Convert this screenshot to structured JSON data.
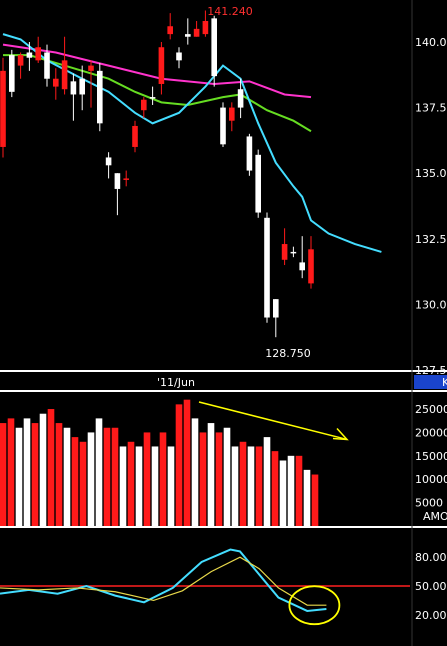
{
  "chart_data": [
    {
      "type": "candlestick",
      "panel": "price",
      "x_label": "'11/Jun",
      "y_ticks": [
        "140.0",
        "137.5",
        "135.0",
        "132.5",
        "130.0",
        "127.5"
      ],
      "ylim": [
        127.5,
        141.6
      ],
      "annotations": {
        "high": "141.240",
        "low": "128.750"
      },
      "ohlc": [
        {
          "o": 138.9,
          "h": 139.4,
          "l": 135.6,
          "c": 136.0,
          "dir": "down"
        },
        {
          "o": 138.1,
          "h": 139.7,
          "l": 137.9,
          "c": 139.5,
          "dir": "up"
        },
        {
          "o": 139.1,
          "h": 139.6,
          "l": 138.6,
          "c": 139.5,
          "dir": "down"
        },
        {
          "o": 139.4,
          "h": 140.0,
          "l": 138.9,
          "c": 139.6,
          "dir": "up"
        },
        {
          "o": 139.8,
          "h": 140.2,
          "l": 139.2,
          "c": 139.3,
          "dir": "down"
        },
        {
          "o": 139.6,
          "h": 139.9,
          "l": 138.3,
          "c": 138.6,
          "dir": "up"
        },
        {
          "o": 138.6,
          "h": 139.0,
          "l": 137.8,
          "c": 138.3,
          "dir": "down"
        },
        {
          "o": 139.3,
          "h": 140.2,
          "l": 138.0,
          "c": 138.2,
          "dir": "down"
        },
        {
          "o": 138.0,
          "h": 138.8,
          "l": 137.0,
          "c": 138.5,
          "dir": "up"
        },
        {
          "o": 138.6,
          "h": 139.1,
          "l": 137.4,
          "c": 138.0,
          "dir": "up"
        },
        {
          "o": 139.1,
          "h": 139.3,
          "l": 137.5,
          "c": 138.9,
          "dir": "down"
        },
        {
          "o": 138.9,
          "h": 139.2,
          "l": 136.6,
          "c": 136.9,
          "dir": "up"
        },
        {
          "o": 135.6,
          "h": 135.8,
          "l": 134.8,
          "c": 135.3,
          "dir": "up"
        },
        {
          "o": 134.4,
          "h": 135.0,
          "l": 133.4,
          "c": 135.0,
          "dir": "up"
        },
        {
          "o": 134.8,
          "h": 135.1,
          "l": 134.5,
          "c": 134.8,
          "dir": "down"
        },
        {
          "o": 136.8,
          "h": 137.0,
          "l": 135.8,
          "c": 136.0,
          "dir": "down"
        },
        {
          "o": 137.8,
          "h": 137.9,
          "l": 137.1,
          "c": 137.4,
          "dir": "down"
        },
        {
          "o": 137.9,
          "h": 138.3,
          "l": 137.6,
          "c": 137.9,
          "dir": "up"
        },
        {
          "o": 138.4,
          "h": 140.0,
          "l": 138.0,
          "c": 139.8,
          "dir": "down"
        },
        {
          "o": 140.6,
          "h": 141.1,
          "l": 140.1,
          "c": 140.3,
          "dir": "down"
        },
        {
          "o": 139.3,
          "h": 139.8,
          "l": 139.0,
          "c": 139.6,
          "dir": "up"
        },
        {
          "o": 140.3,
          "h": 140.9,
          "l": 139.9,
          "c": 140.2,
          "dir": "up"
        },
        {
          "o": 140.5,
          "h": 140.8,
          "l": 140.2,
          "c": 140.2,
          "dir": "down"
        },
        {
          "o": 140.8,
          "h": 141.2,
          "l": 140.2,
          "c": 140.3,
          "dir": "down"
        },
        {
          "o": 140.9,
          "h": 141.0,
          "l": 138.3,
          "c": 138.7,
          "dir": "up"
        },
        {
          "o": 137.5,
          "h": 137.7,
          "l": 136.0,
          "c": 136.1,
          "dir": "up"
        },
        {
          "o": 137.0,
          "h": 137.7,
          "l": 136.6,
          "c": 137.5,
          "dir": "down"
        },
        {
          "o": 138.2,
          "h": 138.6,
          "l": 137.1,
          "c": 137.5,
          "dir": "up"
        },
        {
          "o": 136.4,
          "h": 136.5,
          "l": 134.9,
          "c": 135.1,
          "dir": "up"
        },
        {
          "o": 135.7,
          "h": 135.9,
          "l": 133.3,
          "c": 133.5,
          "dir": "up"
        },
        {
          "o": 133.3,
          "h": 133.5,
          "l": 129.3,
          "c": 129.5,
          "dir": "up"
        },
        {
          "o": 129.5,
          "h": 130.2,
          "l": 128.75,
          "c": 130.2,
          "dir": "up"
        },
        {
          "o": 132.3,
          "h": 132.9,
          "l": 131.5,
          "c": 131.7,
          "dir": "down"
        },
        {
          "o": 132.0,
          "h": 132.2,
          "l": 131.8,
          "c": 132.0,
          "dir": "up"
        },
        {
          "o": 131.6,
          "h": 132.6,
          "l": 131.0,
          "c": 131.3,
          "dir": "up"
        },
        {
          "o": 132.1,
          "h": 132.6,
          "l": 130.6,
          "c": 130.8,
          "dir": "down"
        }
      ],
      "overlays": [
        {
          "color": "#ff33cc",
          "points": [
            [
              0,
              139.9
            ],
            [
              6,
              139.6
            ],
            [
              12,
              139.1
            ],
            [
              18,
              138.6
            ],
            [
              24,
              138.4
            ],
            [
              28,
              138.5
            ],
            [
              32,
              138.0
            ],
            [
              35,
              137.9
            ]
          ]
        },
        {
          "color": "#66dd22",
          "points": [
            [
              0,
              139.5
            ],
            [
              3,
              139.5
            ],
            [
              6,
              139.2
            ],
            [
              9,
              138.9
            ],
            [
              12,
              138.6
            ],
            [
              15,
              138.1
            ],
            [
              18,
              137.7
            ],
            [
              21,
              137.6
            ],
            [
              25,
              137.9
            ],
            [
              27,
              138.0
            ],
            [
              30,
              137.4
            ],
            [
              33,
              137.0
            ],
            [
              35,
              136.6
            ]
          ]
        },
        {
          "color": "#44ddff",
          "points": [
            [
              0,
              140.3
            ],
            [
              2,
              140.1
            ],
            [
              5,
              139.3
            ],
            [
              9,
              138.6
            ],
            [
              12,
              138.1
            ],
            [
              15,
              137.3
            ],
            [
              17,
              136.9
            ],
            [
              20,
              137.3
            ],
            [
              23,
              138.3
            ],
            [
              25,
              139.1
            ],
            [
              27,
              138.6
            ],
            [
              29,
              136.9
            ],
            [
              31,
              135.4
            ],
            [
              33,
              134.5
            ],
            [
              34,
              134.1
            ],
            [
              35,
              133.2
            ],
            [
              37,
              132.7
            ],
            [
              40,
              132.3
            ],
            [
              43,
              132.0
            ]
          ]
        }
      ]
    },
    {
      "type": "bar",
      "panel": "volume",
      "y_ticks": [
        "25000",
        "20000",
        "15000",
        "10000",
        "5000"
      ],
      "ylim": [
        0,
        28000
      ],
      "label": "AMO",
      "values": [
        22000,
        23000,
        21000,
        23000,
        22000,
        24000,
        25000,
        22000,
        21000,
        19000,
        18000,
        20000,
        23000,
        21000,
        21000,
        17000,
        18000,
        17000,
        20000,
        17000,
        20000,
        17000,
        26000,
        27000,
        23000,
        20000,
        22000,
        20000,
        21000,
        17000,
        18000,
        17000,
        17000,
        19000,
        16000,
        14000,
        15000,
        15000,
        12000,
        11000
      ],
      "colors": [
        "red",
        "red",
        "white",
        "white",
        "red",
        "white",
        "red",
        "red",
        "white",
        "red",
        "red",
        "white",
        "white",
        "red",
        "red",
        "white",
        "red",
        "white",
        "red",
        "white",
        "red",
        "white",
        "red",
        "red",
        "white",
        "red",
        "white",
        "red",
        "white",
        "white",
        "red",
        "white",
        "red",
        "white",
        "red",
        "white",
        "white",
        "red",
        "white",
        "red"
      ],
      "trendline": {
        "color": "#ffff00",
        "from": [
          27,
          26500
        ],
        "to": [
          40,
          18500
        ]
      }
    },
    {
      "type": "line",
      "panel": "oscillator",
      "y_ticks": [
        "80.00",
        "50.00",
        "20.00"
      ],
      "ylim": [
        0,
        100
      ],
      "level_line": {
        "value": 50,
        "color": "#ff2020"
      },
      "series": [
        {
          "color": "#44ddff",
          "points": [
            [
              0,
              42
            ],
            [
              3,
              46
            ],
            [
              6,
              42
            ],
            [
              9,
              50
            ],
            [
              12,
              40
            ],
            [
              15,
              33
            ],
            [
              18,
              48
            ],
            [
              21,
              75
            ],
            [
              24,
              88
            ],
            [
              25,
              86
            ],
            [
              27,
              62
            ],
            [
              29,
              38
            ],
            [
              32,
              24
            ],
            [
              34,
              26
            ]
          ]
        },
        {
          "color": "#e8d84a",
          "points": [
            [
              0,
              48
            ],
            [
              4,
              46
            ],
            [
              8,
              48
            ],
            [
              12,
              44
            ],
            [
              16,
              35
            ],
            [
              19,
              45
            ],
            [
              22,
              65
            ],
            [
              25,
              80
            ],
            [
              27,
              68
            ],
            [
              29,
              48
            ],
            [
              32,
              30
            ],
            [
              34,
              30
            ]
          ]
        }
      ],
      "circle_annotation": {
        "color": "#ffff00"
      }
    }
  ],
  "right_edge_labels": {
    "price": "K",
    "volume": "AMO"
  }
}
